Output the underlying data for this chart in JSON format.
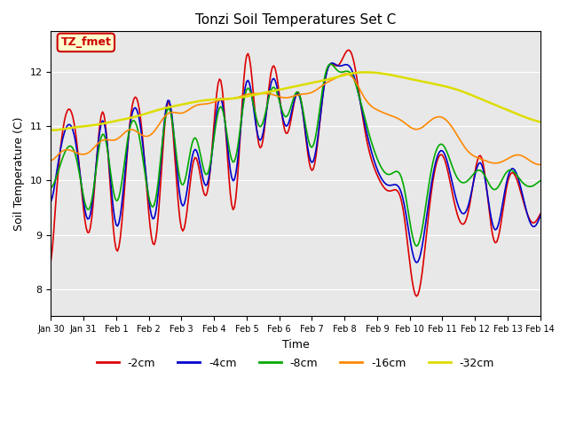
{
  "title": "Tonzi Soil Temperatures Set C",
  "xlabel": "Time",
  "ylabel": "Soil Temperature (C)",
  "ylim": [
    7.5,
    12.75
  ],
  "xlim": [
    0,
    352
  ],
  "bg_color": "#e8e8e8",
  "fig_color": "#ffffff",
  "legend_label": "TZ_fmet",
  "legend_bg": "#ffffcc",
  "legend_border": "#cc0000",
  "series_colors": {
    "-2cm": "#dd0000",
    "-4cm": "#0000cc",
    "-8cm": "#00aa00",
    "-16cm": "#ff8800",
    "-32cm": "#dddd00"
  },
  "tick_labels": [
    "Jan 30",
    "Jan 31",
    "Feb 1",
    "Feb 2",
    "Feb 3",
    "Feb 4",
    "Feb 5",
    "Feb 6",
    "Feb 7",
    "Feb 8",
    "Feb 9",
    "Feb 10",
    "Feb 11",
    "Feb 12",
    "Feb 13",
    "Feb 14"
  ],
  "tick_positions": [
    0,
    24,
    48,
    72,
    96,
    120,
    144,
    168,
    192,
    216,
    240,
    264,
    288,
    312,
    336,
    360
  ]
}
